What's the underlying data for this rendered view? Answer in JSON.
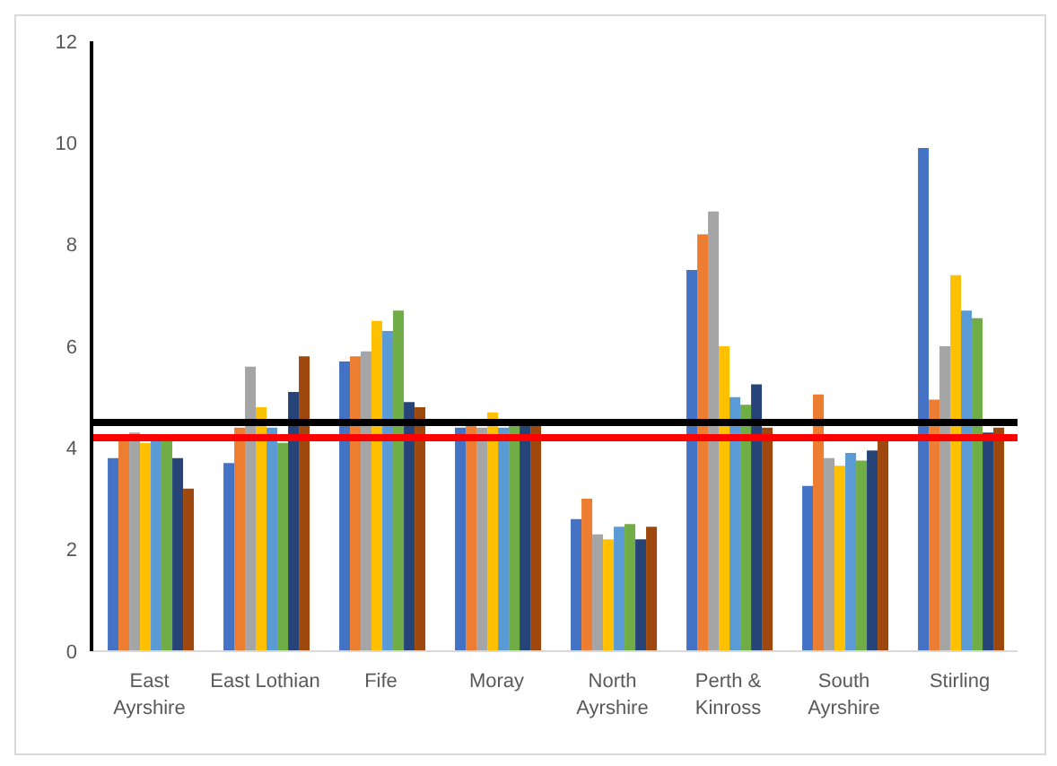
{
  "chart_data": {
    "type": "bar",
    "categories": [
      "East Ayrshire",
      "East Lothian",
      "Fife",
      "Moray",
      "North Ayrshire",
      "Perth & Kinross",
      "South Ayrshire",
      "Stirling"
    ],
    "series": [
      {
        "color": "#4472c4",
        "values": [
          3.8,
          3.7,
          5.7,
          4.4,
          2.6,
          7.5,
          3.25,
          9.9
        ]
      },
      {
        "color": "#ed7d31",
        "values": [
          4.2,
          4.4,
          5.8,
          4.5,
          3.0,
          8.2,
          5.05,
          4.95
        ]
      },
      {
        "color": "#a5a5a5",
        "values": [
          4.3,
          5.6,
          5.9,
          4.4,
          2.3,
          8.65,
          3.8,
          6.0
        ]
      },
      {
        "color": "#ffc000",
        "values": [
          4.1,
          4.8,
          6.5,
          4.7,
          2.2,
          6.0,
          3.65,
          7.4
        ]
      },
      {
        "color": "#5b9bd5",
        "values": [
          4.2,
          4.4,
          6.3,
          4.4,
          2.45,
          5.0,
          3.9,
          6.7
        ]
      },
      {
        "color": "#70ad47",
        "values": [
          4.2,
          4.1,
          6.7,
          4.5,
          2.5,
          4.85,
          3.75,
          6.55
        ]
      },
      {
        "color": "#264478",
        "values": [
          3.8,
          5.1,
          4.9,
          4.5,
          2.2,
          5.25,
          3.95,
          4.3
        ]
      },
      {
        "color": "#9e480e",
        "values": [
          3.2,
          5.8,
          4.8,
          4.5,
          2.45,
          4.4,
          4.2,
          4.4
        ]
      }
    ],
    "ylim": [
      0,
      12
    ],
    "yticks": [
      0,
      2,
      4,
      6,
      8,
      10,
      12
    ],
    "grid": false,
    "legend": false,
    "ref_lines": [
      {
        "axis": "y",
        "value": 4.5,
        "color": "#000000"
      },
      {
        "axis": "y",
        "value": 4.2,
        "color": "#ff0000"
      }
    ]
  }
}
